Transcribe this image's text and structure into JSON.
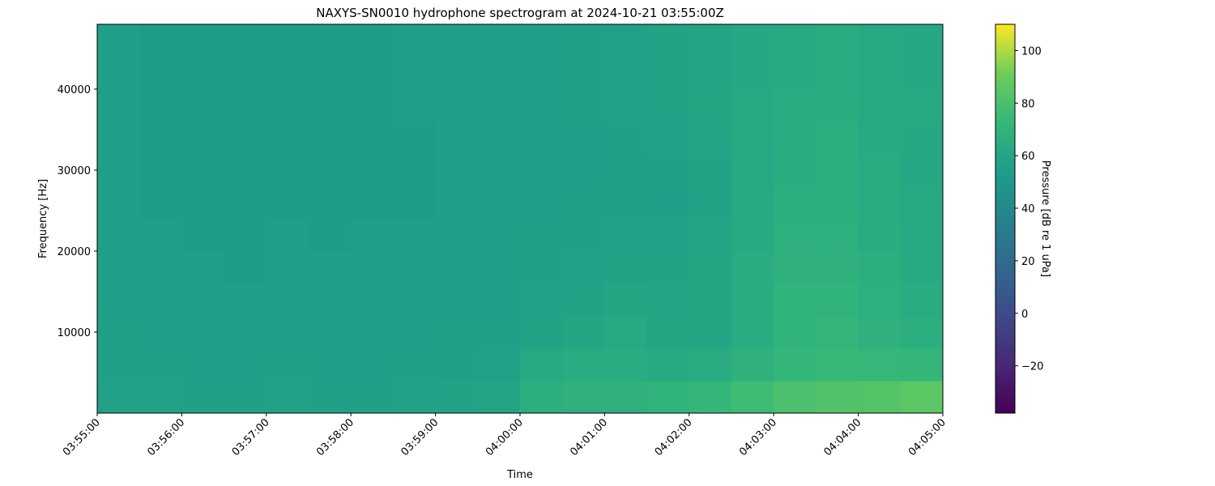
{
  "chart_data": {
    "type": "heatmap",
    "title": "NAXYS-SN0010 hydrophone spectrogram at 2024-10-21 03:55:00Z",
    "xlabel": "Time",
    "ylabel": "Frequency [Hz]",
    "colorbar_label": "Pressure [dB re 1 uPa]",
    "colormap": "viridis",
    "x": [
      "03:55:00",
      "03:55:30",
      "03:56:00",
      "03:56:30",
      "03:57:00",
      "03:57:30",
      "03:58:00",
      "03:58:30",
      "03:59:00",
      "03:59:30",
      "04:00:00",
      "04:00:30",
      "04:01:00",
      "04:01:30",
      "04:02:00",
      "04:02:30",
      "04:03:00",
      "04:03:30",
      "04:04:00",
      "04:04:30"
    ],
    "xlim": [
      "03:55:00",
      "04:05:00"
    ],
    "xticks": [
      "03:55:00",
      "03:56:00",
      "03:57:00",
      "03:58:00",
      "03:59:00",
      "04:00:00",
      "04:01:00",
      "04:02:00",
      "04:03:00",
      "04:04:00",
      "04:05:00"
    ],
    "y": [
      0,
      4000,
      8000,
      12000,
      16000,
      20000,
      24000,
      28000,
      32000,
      36000,
      40000,
      44000
    ],
    "ylim": [
      0,
      48000
    ],
    "yticks": [
      10000,
      20000,
      30000,
      40000
    ],
    "clim": [
      -38,
      110
    ],
    "cticks": [
      {
        "value": -20,
        "label": "−20"
      },
      0,
      20,
      40,
      60,
      80,
      100
    ],
    "z": [
      [
        57,
        57,
        56,
        56,
        57,
        56,
        56,
        57,
        58,
        59,
        66,
        68,
        68,
        70,
        72,
        76,
        80,
        82,
        83,
        85
      ],
      [
        56,
        56,
        55,
        55,
        56,
        55,
        55,
        56,
        56,
        57,
        62,
        64,
        64,
        63,
        64,
        68,
        72,
        74,
        73,
        72
      ],
      [
        56,
        55,
        55,
        55,
        55,
        55,
        55,
        55,
        56,
        56,
        58,
        60,
        62,
        60,
        60,
        64,
        70,
        72,
        68,
        66
      ],
      [
        55,
        55,
        55,
        55,
        55,
        55,
        55,
        55,
        55,
        55,
        57,
        58,
        60,
        59,
        60,
        64,
        70,
        70,
        67,
        64
      ],
      [
        55,
        55,
        55,
        54,
        55,
        55,
        55,
        55,
        55,
        55,
        56,
        57,
        58,
        58,
        60,
        64,
        68,
        68,
        66,
        63
      ],
      [
        55,
        55,
        54,
        54,
        55,
        54,
        55,
        55,
        55,
        55,
        56,
        56,
        57,
        57,
        59,
        63,
        67,
        67,
        65,
        62
      ],
      [
        55,
        54,
        54,
        54,
        54,
        54,
        54,
        54,
        55,
        55,
        55,
        56,
        56,
        55,
        58,
        62,
        66,
        66,
        64,
        62
      ],
      [
        55,
        54,
        54,
        54,
        54,
        54,
        54,
        54,
        55,
        55,
        55,
        55,
        56,
        56,
        58,
        62,
        65,
        66,
        64,
        61
      ],
      [
        55,
        54,
        54,
        54,
        54,
        54,
        54,
        54,
        55,
        55,
        55,
        55,
        56,
        57,
        59,
        62,
        64,
        66,
        63,
        61
      ],
      [
        55,
        54,
        54,
        54,
        54,
        54,
        54,
        55,
        55,
        55,
        55,
        56,
        57,
        58,
        60,
        62,
        64,
        65,
        63,
        62
      ],
      [
        55,
        54,
        54,
        54,
        54,
        54,
        54,
        55,
        55,
        55,
        55,
        56,
        57,
        58,
        59,
        61,
        63,
        64,
        62,
        61
      ],
      [
        55,
        54,
        54,
        54,
        54,
        54,
        54,
        55,
        55,
        55,
        55,
        56,
        57,
        58,
        59,
        61,
        63,
        64,
        62,
        61
      ]
    ]
  }
}
